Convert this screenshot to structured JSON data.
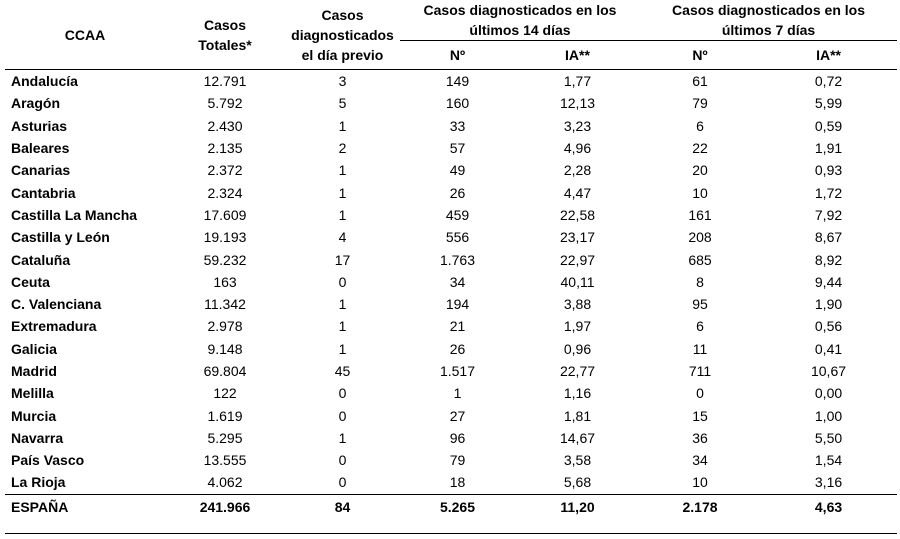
{
  "headers": {
    "ccaa": "CCAA",
    "casos_totales": "Casos Totales*",
    "casos_dia_previo": "Casos diagnosticados el día previo",
    "group_14": "Casos diagnosticados en los últimos 14 días",
    "group_7": "Casos diagnosticados en los últimos 7 días",
    "n14": "Nº",
    "ia14": "IA**",
    "n7": "Nº",
    "ia7": "IA**"
  },
  "rows": [
    {
      "ccaa": "Andalucía",
      "totales": "12.791",
      "previo": "3",
      "n14": "149",
      "ia14": "1,77",
      "n7": "61",
      "ia7": "0,72"
    },
    {
      "ccaa": "Aragón",
      "totales": "5.792",
      "previo": "5",
      "n14": "160",
      "ia14": "12,13",
      "n7": "79",
      "ia7": "5,99"
    },
    {
      "ccaa": "Asturias",
      "totales": "2.430",
      "previo": "1",
      "n14": "33",
      "ia14": "3,23",
      "n7": "6",
      "ia7": "0,59"
    },
    {
      "ccaa": "Baleares",
      "totales": "2.135",
      "previo": "2",
      "n14": "57",
      "ia14": "4,96",
      "n7": "22",
      "ia7": "1,91"
    },
    {
      "ccaa": "Canarias",
      "totales": "2.372",
      "previo": "1",
      "n14": "49",
      "ia14": "2,28",
      "n7": "20",
      "ia7": "0,93"
    },
    {
      "ccaa": "Cantabria",
      "totales": "2.324",
      "previo": "1",
      "n14": "26",
      "ia14": "4,47",
      "n7": "10",
      "ia7": "1,72"
    },
    {
      "ccaa": "Castilla La Mancha",
      "totales": "17.609",
      "previo": "1",
      "n14": "459",
      "ia14": "22,58",
      "n7": "161",
      "ia7": "7,92"
    },
    {
      "ccaa": "Castilla y León",
      "totales": "19.193",
      "previo": "4",
      "n14": "556",
      "ia14": "23,17",
      "n7": "208",
      "ia7": "8,67"
    },
    {
      "ccaa": "Cataluña",
      "totales": "59.232",
      "previo": "17",
      "n14": "1.763",
      "ia14": "22,97",
      "n7": "685",
      "ia7": "8,92"
    },
    {
      "ccaa": "Ceuta",
      "totales": "163",
      "previo": "0",
      "n14": "34",
      "ia14": "40,11",
      "n7": "8",
      "ia7": "9,44"
    },
    {
      "ccaa": "C. Valenciana",
      "totales": "11.342",
      "previo": "1",
      "n14": "194",
      "ia14": "3,88",
      "n7": "95",
      "ia7": "1,90"
    },
    {
      "ccaa": "Extremadura",
      "totales": "2.978",
      "previo": "1",
      "n14": "21",
      "ia14": "1,97",
      "n7": "6",
      "ia7": "0,56"
    },
    {
      "ccaa": "Galicia",
      "totales": "9.148",
      "previo": "1",
      "n14": "26",
      "ia14": "0,96",
      "n7": "11",
      "ia7": "0,41"
    },
    {
      "ccaa": "Madrid",
      "totales": "69.804",
      "previo": "45",
      "n14": "1.517",
      "ia14": "22,77",
      "n7": "711",
      "ia7": "10,67"
    },
    {
      "ccaa": "Melilla",
      "totales": "122",
      "previo": "0",
      "n14": "1",
      "ia14": "1,16",
      "n7": "0",
      "ia7": "0,00"
    },
    {
      "ccaa": "Murcia",
      "totales": "1.619",
      "previo": "0",
      "n14": "27",
      "ia14": "1,81",
      "n7": "15",
      "ia7": "1,00"
    },
    {
      "ccaa": "Navarra",
      "totales": "5.295",
      "previo": "1",
      "n14": "96",
      "ia14": "14,67",
      "n7": "36",
      "ia7": "5,50"
    },
    {
      "ccaa": "País Vasco",
      "totales": "13.555",
      "previo": "0",
      "n14": "79",
      "ia14": "3,58",
      "n7": "34",
      "ia7": "1,54"
    },
    {
      "ccaa": "La Rioja",
      "totales": "4.062",
      "previo": "0",
      "n14": "18",
      "ia14": "5,68",
      "n7": "10",
      "ia7": "3,16"
    }
  ],
  "total": {
    "ccaa": "ESPAÑA",
    "totales": "241.966",
    "previo": "84",
    "n14": "5.265",
    "ia14": "11,20",
    "n7": "2.178",
    "ia7": "4,63"
  }
}
